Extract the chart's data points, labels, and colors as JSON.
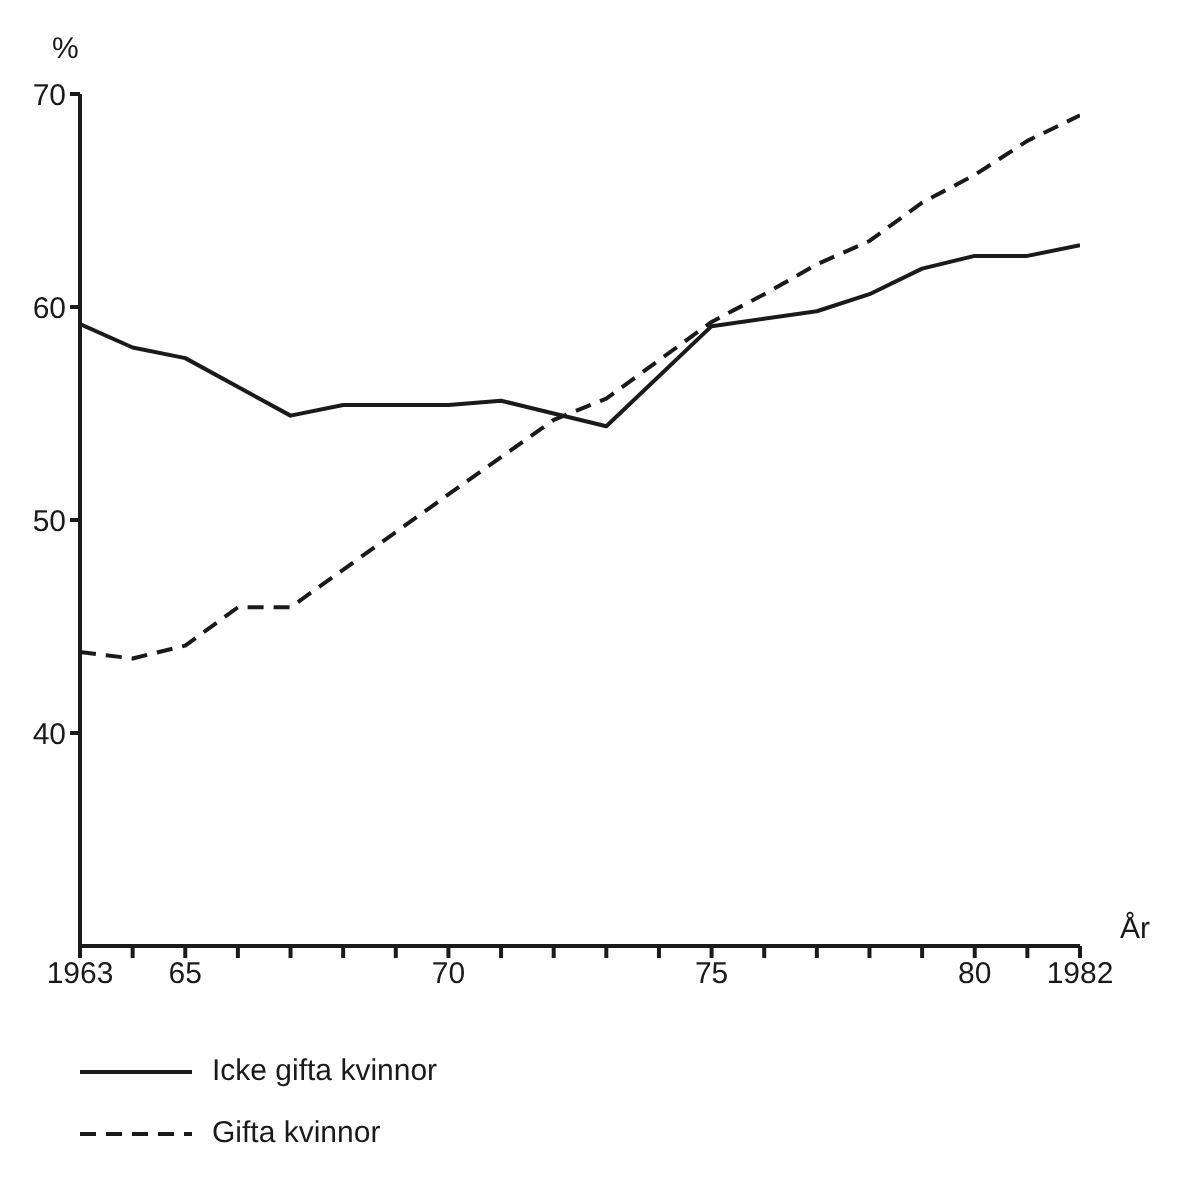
{
  "chart_data": {
    "type": "line",
    "xlabel": "År",
    "ylabel": "%",
    "xlim": [
      1963,
      1982
    ],
    "ylim": [
      30,
      70
    ],
    "xticks": [
      {
        "value": 1963,
        "label": "1963"
      },
      {
        "value": 1964,
        "label": null
      },
      {
        "value": 1965,
        "label": "65"
      },
      {
        "value": 1966,
        "label": null
      },
      {
        "value": 1967,
        "label": null
      },
      {
        "value": 1968,
        "label": null
      },
      {
        "value": 1969,
        "label": null
      },
      {
        "value": 1970,
        "label": "70"
      },
      {
        "value": 1971,
        "label": null
      },
      {
        "value": 1972,
        "label": null
      },
      {
        "value": 1973,
        "label": null
      },
      {
        "value": 1974,
        "label": null
      },
      {
        "value": 1975,
        "label": "75"
      },
      {
        "value": 1976,
        "label": null
      },
      {
        "value": 1977,
        "label": null
      },
      {
        "value": 1978,
        "label": null
      },
      {
        "value": 1979,
        "label": null
      },
      {
        "value": 1980,
        "label": "80"
      },
      {
        "value": 1981,
        "label": null
      },
      {
        "value": 1982,
        "label": "1982"
      }
    ],
    "yticks": [
      40,
      50,
      60,
      70
    ],
    "grid": false,
    "legend": "bottom left",
    "marker": "none",
    "series": [
      {
        "name": "Icke gifta kvinnor",
        "color": "#1a1a1a",
        "line_style": "solid",
        "x": [
          1963,
          1964,
          1965,
          1967,
          1968,
          1970,
          1971,
          1972,
          1973,
          1975,
          1977,
          1978,
          1979,
          1980,
          1981,
          1982
        ],
        "values": [
          59.2,
          58.1,
          57.6,
          54.9,
          55.4,
          55.4,
          55.6,
          55.0,
          54.4,
          59.1,
          59.8,
          60.6,
          61.8,
          62.4,
          62.4,
          62.9
        ]
      },
      {
        "name": "Gifta kvinnor",
        "color": "#1a1a1a",
        "line_style": "dashed",
        "x": [
          1963,
          1964,
          1965,
          1966,
          1967,
          1970,
          1972,
          1973,
          1975,
          1976,
          1977,
          1978,
          1979,
          1980,
          1981,
          1982
        ],
        "values": [
          43.8,
          43.5,
          44.1,
          45.9,
          45.9,
          51.2,
          54.7,
          55.7,
          59.3,
          60.6,
          62.0,
          63.1,
          64.9,
          66.2,
          67.8,
          69.0
        ]
      }
    ]
  }
}
